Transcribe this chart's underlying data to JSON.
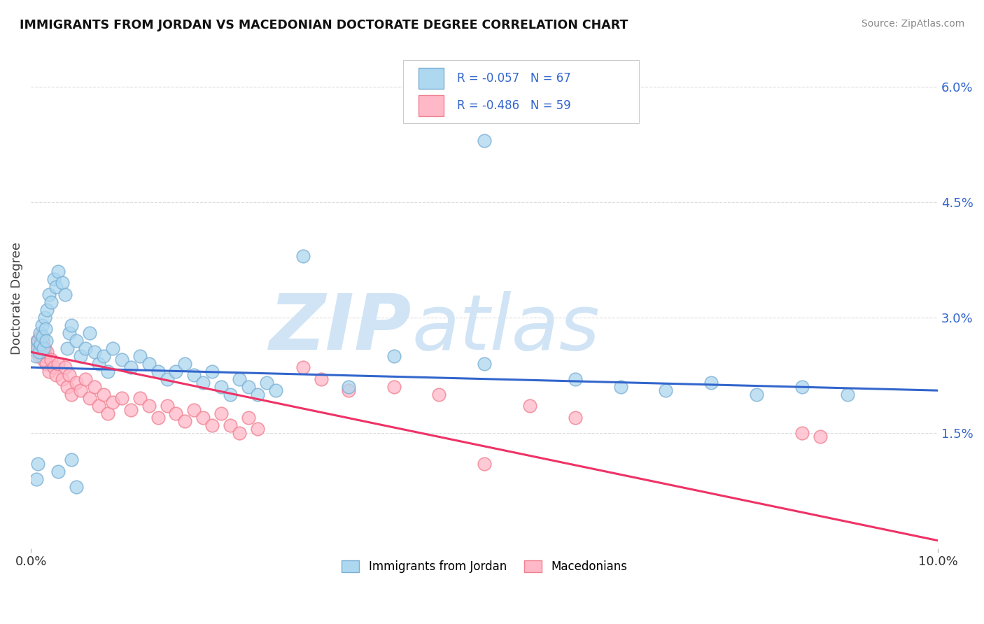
{
  "title": "IMMIGRANTS FROM JORDAN VS MACEDONIAN DOCTORATE DEGREE CORRELATION CHART",
  "source": "Source: ZipAtlas.com",
  "ylabel": "Doctorate Degree",
  "legend_labels": [
    "Immigrants from Jordan",
    "Macedonians"
  ],
  "r_jordan": -0.057,
  "n_jordan": 67,
  "r_macedonian": -0.486,
  "n_macedonian": 59,
  "xmin": 0.0,
  "xmax": 10.0,
  "ymin": 0.0,
  "ymax": 6.5,
  "yticks": [
    0.0,
    1.5,
    3.0,
    4.5,
    6.0
  ],
  "blue_color": "#7BAFD4",
  "blue_fill": "#ADD8F0",
  "pink_color": "#F08090",
  "pink_fill": "#FFB8C8",
  "blue_points": [
    [
      0.05,
      2.5
    ],
    [
      0.07,
      2.6
    ],
    [
      0.08,
      2.7
    ],
    [
      0.09,
      2.55
    ],
    [
      0.1,
      2.8
    ],
    [
      0.11,
      2.65
    ],
    [
      0.12,
      2.9
    ],
    [
      0.13,
      2.75
    ],
    [
      0.14,
      2.6
    ],
    [
      0.15,
      3.0
    ],
    [
      0.16,
      2.85
    ],
    [
      0.17,
      2.7
    ],
    [
      0.18,
      3.1
    ],
    [
      0.2,
      3.3
    ],
    [
      0.22,
      3.2
    ],
    [
      0.25,
      3.5
    ],
    [
      0.28,
      3.4
    ],
    [
      0.3,
      3.6
    ],
    [
      0.35,
      3.45
    ],
    [
      0.38,
      3.3
    ],
    [
      0.4,
      2.6
    ],
    [
      0.42,
      2.8
    ],
    [
      0.45,
      2.9
    ],
    [
      0.5,
      2.7
    ],
    [
      0.55,
      2.5
    ],
    [
      0.6,
      2.6
    ],
    [
      0.65,
      2.8
    ],
    [
      0.7,
      2.55
    ],
    [
      0.75,
      2.4
    ],
    [
      0.8,
      2.5
    ],
    [
      0.85,
      2.3
    ],
    [
      0.9,
      2.6
    ],
    [
      1.0,
      2.45
    ],
    [
      1.1,
      2.35
    ],
    [
      1.2,
      2.5
    ],
    [
      1.3,
      2.4
    ],
    [
      1.4,
      2.3
    ],
    [
      1.5,
      2.2
    ],
    [
      1.6,
      2.3
    ],
    [
      1.7,
      2.4
    ],
    [
      1.8,
      2.25
    ],
    [
      1.9,
      2.15
    ],
    [
      2.0,
      2.3
    ],
    [
      2.1,
      2.1
    ],
    [
      2.2,
      2.0
    ],
    [
      2.3,
      2.2
    ],
    [
      2.4,
      2.1
    ],
    [
      2.5,
      2.0
    ],
    [
      2.6,
      2.15
    ],
    [
      2.7,
      2.05
    ],
    [
      3.0,
      3.8
    ],
    [
      3.5,
      2.1
    ],
    [
      4.0,
      2.5
    ],
    [
      5.0,
      2.4
    ],
    [
      5.0,
      5.3
    ],
    [
      6.0,
      2.2
    ],
    [
      6.5,
      2.1
    ],
    [
      7.0,
      2.05
    ],
    [
      7.5,
      2.15
    ],
    [
      8.0,
      2.0
    ],
    [
      8.5,
      2.1
    ],
    [
      9.0,
      2.0
    ],
    [
      0.06,
      0.9
    ],
    [
      0.3,
      1.0
    ],
    [
      0.08,
      1.1
    ],
    [
      0.45,
      1.15
    ],
    [
      0.5,
      0.8
    ]
  ],
  "pink_points": [
    [
      0.05,
      2.65
    ],
    [
      0.06,
      2.55
    ],
    [
      0.07,
      2.7
    ],
    [
      0.08,
      2.6
    ],
    [
      0.09,
      2.5
    ],
    [
      0.1,
      2.75
    ],
    [
      0.11,
      2.65
    ],
    [
      0.12,
      2.55
    ],
    [
      0.13,
      2.7
    ],
    [
      0.14,
      2.45
    ],
    [
      0.15,
      2.6
    ],
    [
      0.16,
      2.5
    ],
    [
      0.17,
      2.4
    ],
    [
      0.18,
      2.55
    ],
    [
      0.2,
      2.3
    ],
    [
      0.22,
      2.45
    ],
    [
      0.25,
      2.35
    ],
    [
      0.28,
      2.25
    ],
    [
      0.3,
      2.4
    ],
    [
      0.35,
      2.2
    ],
    [
      0.38,
      2.35
    ],
    [
      0.4,
      2.1
    ],
    [
      0.42,
      2.25
    ],
    [
      0.45,
      2.0
    ],
    [
      0.5,
      2.15
    ],
    [
      0.55,
      2.05
    ],
    [
      0.6,
      2.2
    ],
    [
      0.65,
      1.95
    ],
    [
      0.7,
      2.1
    ],
    [
      0.75,
      1.85
    ],
    [
      0.8,
      2.0
    ],
    [
      0.85,
      1.75
    ],
    [
      0.9,
      1.9
    ],
    [
      1.0,
      1.95
    ],
    [
      1.1,
      1.8
    ],
    [
      1.2,
      1.95
    ],
    [
      1.3,
      1.85
    ],
    [
      1.4,
      1.7
    ],
    [
      1.5,
      1.85
    ],
    [
      1.6,
      1.75
    ],
    [
      1.7,
      1.65
    ],
    [
      1.8,
      1.8
    ],
    [
      1.9,
      1.7
    ],
    [
      2.0,
      1.6
    ],
    [
      2.1,
      1.75
    ],
    [
      2.2,
      1.6
    ],
    [
      2.3,
      1.5
    ],
    [
      2.4,
      1.7
    ],
    [
      2.5,
      1.55
    ],
    [
      3.0,
      2.35
    ],
    [
      3.2,
      2.2
    ],
    [
      3.5,
      2.05
    ],
    [
      4.0,
      2.1
    ],
    [
      4.5,
      2.0
    ],
    [
      5.0,
      1.1
    ],
    [
      5.5,
      1.85
    ],
    [
      6.0,
      1.7
    ],
    [
      8.5,
      1.5
    ],
    [
      8.7,
      1.45
    ]
  ],
  "blue_line_y0": 2.35,
  "blue_line_y1": 2.05,
  "pink_line_y0": 2.55,
  "pink_line_y1": 0.1,
  "watermark_zip": "ZIP",
  "watermark_atlas": "atlas",
  "watermark_color": "#D0E4F5",
  "background_color": "#FFFFFF",
  "grid_color": "#DDDDDD"
}
